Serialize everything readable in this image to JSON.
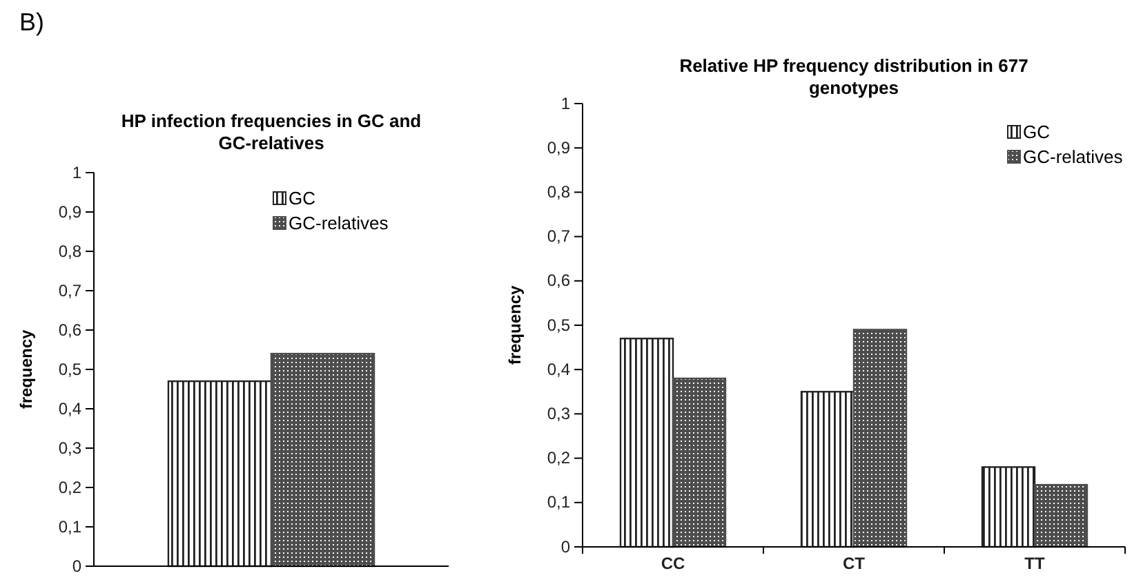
{
  "chart_data": [
    {
      "type": "bar",
      "title": "HP infection frequencies in GC and GC-relatives",
      "ylabel": "frequency",
      "annotations": [
        "B)"
      ],
      "categories": [
        null
      ],
      "series": [
        {
          "name": "GC",
          "color": "#222222",
          "values": [
            0.47
          ]
        },
        {
          "name": "GC-relatives",
          "color": "#4d4d4d",
          "values": [
            0.54
          ]
        }
      ],
      "ylim": [
        0,
        1
      ],
      "yticks": [
        {
          "value": 0,
          "label": "0"
        },
        {
          "value": 0.1,
          "label": "0,1"
        },
        {
          "value": 0.2,
          "label": "0,2"
        },
        {
          "value": 0.3,
          "label": "0,3"
        },
        {
          "value": 0.4,
          "label": "0,4"
        },
        {
          "value": 0.5,
          "label": "0,5"
        },
        {
          "value": 0.6,
          "label": "0,6"
        },
        {
          "value": 0.7,
          "label": "0,7"
        },
        {
          "value": 0.8,
          "label": "0,8"
        },
        {
          "value": 0.9,
          "label": "0,9"
        },
        {
          "value": 1,
          "label": "1"
        }
      ],
      "grid": false,
      "legend": "top right"
    },
    {
      "type": "bar",
      "title": "Relative HP frequency distribution in 677 genotypes",
      "ylabel": "frequency",
      "categories": [
        "CC",
        "CT",
        "TT"
      ],
      "series": [
        {
          "name": "GC",
          "color": "#222222",
          "values": [
            0.47,
            0.35,
            0.18
          ]
        },
        {
          "name": "GC-relatives",
          "color": "#4d4d4d",
          "values": [
            0.38,
            0.49,
            0.14
          ]
        }
      ],
      "ylim": [
        0,
        1
      ],
      "yticks": [
        {
          "value": 0,
          "label": "0"
        },
        {
          "value": 0.1,
          "label": "0,1"
        },
        {
          "value": 0.2,
          "label": "0,2"
        },
        {
          "value": 0.3,
          "label": "0,3"
        },
        {
          "value": 0.4,
          "label": "0,4"
        },
        {
          "value": 0.5,
          "label": "0,5"
        },
        {
          "value": 0.6,
          "label": "0,6"
        },
        {
          "value": 0.7,
          "label": "0,7"
        },
        {
          "value": 0.8,
          "label": "0,8"
        },
        {
          "value": 0.9,
          "label": "0,9"
        },
        {
          "value": 1,
          "label": "1"
        }
      ],
      "grid": false,
      "legend": "top right"
    }
  ]
}
